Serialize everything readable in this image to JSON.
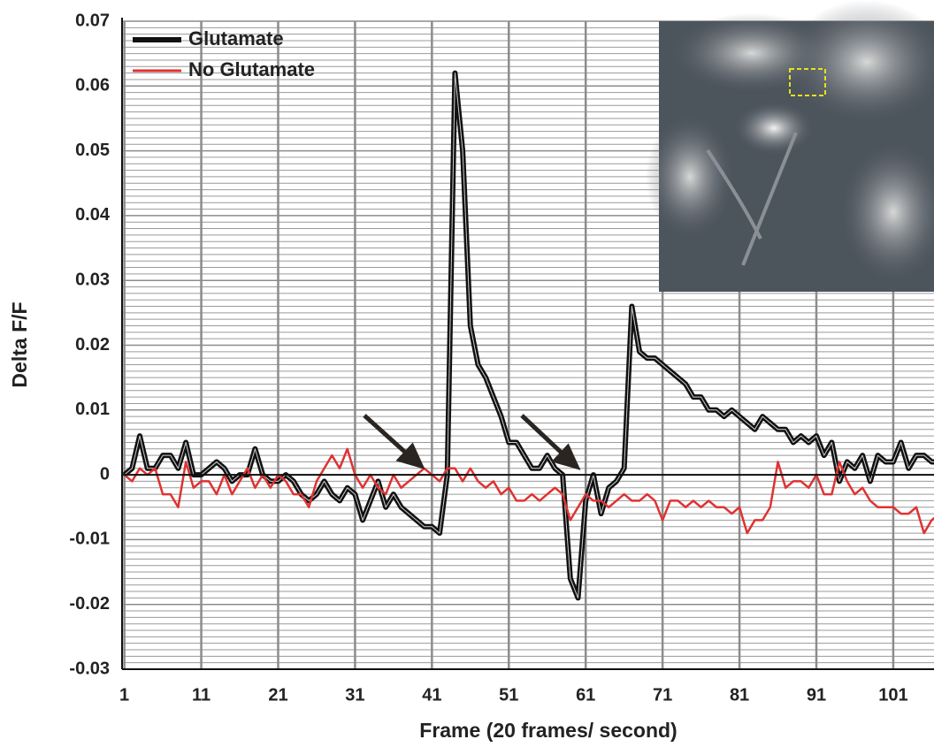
{
  "chart_data": {
    "type": "line",
    "xlabel": "Frame (20 frames/ second)",
    "ylabel": "Delta F/F",
    "x": [
      1,
      2,
      3,
      4,
      5,
      6,
      7,
      8,
      9,
      10,
      11,
      12,
      13,
      14,
      15,
      16,
      17,
      18,
      19,
      20,
      21,
      22,
      23,
      24,
      25,
      26,
      27,
      28,
      29,
      30,
      31,
      32,
      33,
      34,
      35,
      36,
      37,
      38,
      39,
      40,
      41,
      42,
      43,
      44,
      45,
      46,
      47,
      48,
      49,
      50,
      51,
      52,
      53,
      54,
      55,
      56,
      57,
      58,
      59,
      60,
      61,
      62,
      63,
      64,
      65,
      66,
      67,
      68,
      69,
      70,
      71,
      72,
      73,
      74,
      75,
      76,
      77,
      78,
      79,
      80,
      81,
      82,
      83,
      84,
      85,
      86,
      87,
      88,
      89,
      90,
      91,
      92,
      93,
      94,
      95,
      96,
      97,
      98,
      99,
      100,
      101,
      102,
      103,
      104,
      105,
      106,
      107
    ],
    "series": [
      {
        "name": "Glutamate",
        "color": "#111111",
        "values": [
          0,
          0.001,
          0.006,
          0.001,
          0.001,
          0.003,
          0.003,
          0.001,
          0.005,
          0,
          0,
          0.001,
          0.002,
          0.001,
          -0.001,
          0,
          0,
          0.004,
          0,
          -0.001,
          -0.001,
          0,
          -0.001,
          -0.003,
          -0.004,
          -0.003,
          -0.001,
          -0.003,
          -0.004,
          -0.002,
          -0.003,
          -0.007,
          -0.004,
          -0.001,
          -0.005,
          -0.003,
          -0.005,
          -0.006,
          -0.007,
          -0.008,
          -0.008,
          -0.009,
          0,
          0.062,
          0.05,
          0.023,
          0.017,
          0.015,
          0.012,
          0.009,
          0.005,
          0.005,
          0.003,
          0.001,
          0.001,
          0.003,
          0.001,
          0,
          -0.016,
          -0.019,
          -0.004,
          0,
          -0.006,
          -0.002,
          -0.001,
          0.001,
          0.026,
          0.019,
          0.018,
          0.018,
          0.017,
          0.016,
          0.015,
          0.014,
          0.012,
          0.012,
          0.01,
          0.01,
          0.009,
          0.01,
          0.009,
          0.008,
          0.007,
          0.009,
          0.008,
          0.007,
          0.007,
          0.005,
          0.006,
          0.005,
          0.006,
          0.003,
          0.005,
          -0.001,
          0.002,
          0.001,
          0.003,
          -0.001,
          0.003,
          0.002,
          0.002,
          0.005,
          0.001,
          0.003,
          0.003,
          0.002,
          0.002
        ]
      },
      {
        "name": "No Glutamate",
        "color": "#e03232",
        "values": [
          0,
          -0.001,
          0.001,
          0,
          0.001,
          -0.003,
          -0.003,
          -0.005,
          0.002,
          -0.002,
          -0.001,
          -0.001,
          -0.003,
          0,
          -0.003,
          -0.001,
          0.001,
          -0.002,
          0,
          -0.002,
          0,
          -0.001,
          -0.003,
          -0.003,
          -0.005,
          -0.001,
          0.001,
          0.003,
          0.001,
          0.004,
          0,
          -0.002,
          0,
          -0.002,
          -0.003,
          0,
          -0.002,
          -0.001,
          0,
          0.001,
          0,
          -0.001,
          0.001,
          0.001,
          -0.001,
          0.001,
          -0.001,
          -0.002,
          -0.001,
          -0.003,
          -0.002,
          -0.004,
          -0.004,
          -0.003,
          -0.004,
          -0.003,
          -0.002,
          -0.003,
          -0.007,
          -0.005,
          -0.003,
          -0.004,
          -0.004,
          -0.005,
          -0.004,
          -0.003,
          -0.004,
          -0.004,
          -0.003,
          -0.004,
          -0.007,
          -0.004,
          -0.004,
          -0.005,
          -0.004,
          -0.005,
          -0.004,
          -0.005,
          -0.005,
          -0.006,
          -0.005,
          -0.009,
          -0.007,
          -0.007,
          -0.005,
          0.002,
          -0.002,
          -0.001,
          -0.001,
          -0.002,
          0,
          -0.003,
          -0.003,
          0.002,
          -0.001,
          -0.003,
          -0.002,
          -0.004,
          -0.005,
          -0.005,
          -0.005,
          -0.006,
          -0.006,
          -0.005,
          -0.009,
          -0.007,
          -0.006
        ]
      }
    ],
    "xlim": [
      0.7,
      106.3
    ],
    "xticks": [
      1,
      11,
      21,
      31,
      41,
      51,
      61,
      71,
      81,
      91,
      101
    ],
    "ylim": [
      -0.03,
      0.07
    ],
    "yticks": [
      -0.03,
      -0.02,
      -0.01,
      0,
      0.01,
      0.02,
      0.03,
      0.04,
      0.05,
      0.06,
      0.07
    ],
    "grid": true,
    "legend": "upper left"
  }
}
